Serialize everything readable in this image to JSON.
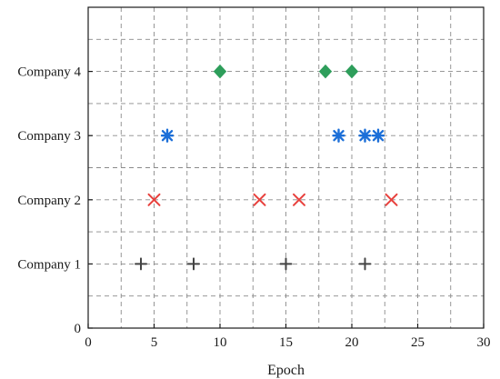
{
  "chart_data": {
    "type": "scatter",
    "title": "",
    "xlabel": "Epoch",
    "ylabel": "",
    "xlim": [
      0,
      30
    ],
    "ylim": [
      0,
      5
    ],
    "grid": true,
    "grid_style": "dashed",
    "x_ticks": [
      0,
      5,
      10,
      15,
      20,
      25,
      30
    ],
    "x_tick_labels": [
      "0",
      "5",
      "10",
      "15",
      "20",
      "25",
      "30"
    ],
    "y_ticks": [
      0,
      1,
      2,
      3,
      4
    ],
    "y_tick_labels": [
      "0",
      "Company 1",
      "Company 2",
      "Company 3",
      "Company 4"
    ],
    "series": [
      {
        "color": "#444444",
        "marker": "plus",
        "y": 1,
        "x": [
          4,
          8,
          15,
          21
        ]
      },
      {
        "color": "#e8403d",
        "marker": "x",
        "y": 2,
        "x": [
          5,
          13,
          16,
          23
        ]
      },
      {
        "color": "#1c6fd8",
        "marker": "asterisk",
        "y": 3,
        "x": [
          6,
          19,
          21,
          22
        ]
      },
      {
        "color": "#2e9e5b",
        "marker": "diamond",
        "y": 4,
        "x": [
          10,
          18,
          20
        ]
      }
    ]
  }
}
